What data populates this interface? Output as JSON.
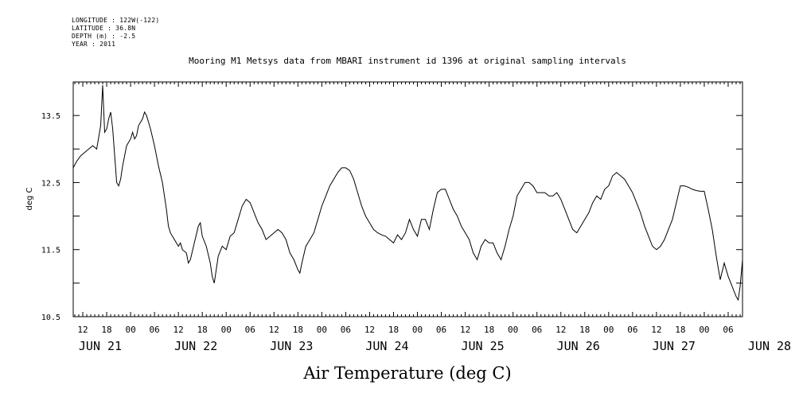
{
  "header": {
    "longitude": "LONGITUDE : 122W(-122)",
    "latitude": "LATITUDE : 36.8N",
    "depth": "DEPTH (m) : -2.5",
    "year": "YEAR : 2011"
  },
  "chart_data": {
    "type": "line",
    "title": "Mooring M1 Metsys data from MBARI instrument id 1396 at original sampling intervals",
    "xlabel": "Air Temperature (deg C)",
    "ylabel": "deg C",
    "ylim": [
      10.5,
      14.0
    ],
    "yticks": [
      "10.5",
      "11.5",
      "12.5",
      "13.5"
    ],
    "x_hour_ticks": [
      "12",
      "18",
      "00",
      "06",
      "12",
      "18",
      "00",
      "06",
      "12",
      "18",
      "00",
      "06",
      "12",
      "18",
      "00",
      "06",
      "12",
      "18",
      "00",
      "06",
      "12",
      "18",
      "00",
      "06",
      "12",
      "18",
      "00",
      "06"
    ],
    "x_day_labels": [
      "JUN 21",
      "JUN 22",
      "JUN 23",
      "JUN 24",
      "JUN 25",
      "JUN 26",
      "JUN 27",
      "JUN 28"
    ],
    "x_units": "hours since 2011-06-21 00:00",
    "xlim": [
      9.6,
      177.6
    ],
    "series": [
      {
        "name": "",
        "points": [
          [
            9.6,
            12.72
          ],
          [
            10.5,
            12.82
          ],
          [
            11.5,
            12.9
          ],
          [
            12.5,
            12.95
          ],
          [
            13.5,
            13.0
          ],
          [
            14.5,
            13.05
          ],
          [
            15.5,
            13.0
          ],
          [
            16.5,
            13.35
          ],
          [
            17.0,
            13.95
          ],
          [
            17.5,
            13.25
          ],
          [
            18.0,
            13.3
          ],
          [
            18.5,
            13.45
          ],
          [
            19.0,
            13.55
          ],
          [
            19.5,
            13.3
          ],
          [
            20.0,
            12.9
          ],
          [
            20.5,
            12.5
          ],
          [
            21.0,
            12.45
          ],
          [
            21.5,
            12.55
          ],
          [
            22.0,
            12.75
          ],
          [
            22.5,
            12.9
          ],
          [
            23.0,
            13.05
          ],
          [
            24.0,
            13.15
          ],
          [
            24.5,
            13.25
          ],
          [
            25.0,
            13.15
          ],
          [
            25.5,
            13.2
          ],
          [
            26.0,
            13.35
          ],
          [
            26.5,
            13.4
          ],
          [
            27.0,
            13.45
          ],
          [
            27.5,
            13.55
          ],
          [
            28.0,
            13.5
          ],
          [
            29.0,
            13.3
          ],
          [
            30.0,
            13.05
          ],
          [
            31.0,
            12.75
          ],
          [
            32.0,
            12.5
          ],
          [
            33.0,
            12.1
          ],
          [
            33.5,
            11.85
          ],
          [
            34.0,
            11.75
          ],
          [
            35.0,
            11.65
          ],
          [
            36.0,
            11.55
          ],
          [
            36.5,
            11.6
          ],
          [
            37.0,
            11.5
          ],
          [
            38.0,
            11.45
          ],
          [
            38.5,
            11.3
          ],
          [
            39.0,
            11.35
          ],
          [
            40.0,
            11.6
          ],
          [
            41.0,
            11.85
          ],
          [
            41.5,
            11.9
          ],
          [
            42.0,
            11.7
          ],
          [
            43.0,
            11.55
          ],
          [
            44.0,
            11.3
          ],
          [
            44.5,
            11.1
          ],
          [
            45.0,
            11.0
          ],
          [
            45.5,
            11.2
          ],
          [
            46.0,
            11.4
          ],
          [
            47.0,
            11.55
          ],
          [
            48.0,
            11.5
          ],
          [
            49.0,
            11.7
          ],
          [
            50.0,
            11.75
          ],
          [
            51.0,
            11.95
          ],
          [
            52.0,
            12.15
          ],
          [
            53.0,
            12.25
          ],
          [
            54.0,
            12.2
          ],
          [
            55.0,
            12.05
          ],
          [
            56.0,
            11.9
          ],
          [
            57.0,
            11.8
          ],
          [
            58.0,
            11.65
          ],
          [
            59.0,
            11.7
          ],
          [
            60.0,
            11.75
          ],
          [
            61.0,
            11.8
          ],
          [
            62.0,
            11.75
          ],
          [
            63.0,
            11.65
          ],
          [
            64.0,
            11.45
          ],
          [
            65.0,
            11.35
          ],
          [
            66.0,
            11.2
          ],
          [
            66.5,
            11.15
          ],
          [
            67.0,
            11.3
          ],
          [
            68.0,
            11.55
          ],
          [
            69.0,
            11.65
          ],
          [
            70.0,
            11.75
          ],
          [
            71.0,
            11.95
          ],
          [
            72.0,
            12.15
          ],
          [
            73.0,
            12.3
          ],
          [
            74.0,
            12.45
          ],
          [
            75.0,
            12.55
          ],
          [
            76.0,
            12.65
          ],
          [
            77.0,
            12.72
          ],
          [
            78.0,
            12.72
          ],
          [
            79.0,
            12.68
          ],
          [
            80.0,
            12.55
          ],
          [
            81.0,
            12.35
          ],
          [
            82.0,
            12.15
          ],
          [
            83.0,
            12.0
          ],
          [
            84.0,
            11.9
          ],
          [
            85.0,
            11.8
          ],
          [
            86.0,
            11.75
          ],
          [
            87.0,
            11.72
          ],
          [
            88.0,
            11.7
          ],
          [
            89.0,
            11.65
          ],
          [
            90.0,
            11.6
          ],
          [
            91.0,
            11.72
          ],
          [
            92.0,
            11.65
          ],
          [
            93.0,
            11.75
          ],
          [
            94.0,
            11.95
          ],
          [
            95.0,
            11.8
          ],
          [
            96.0,
            11.7
          ],
          [
            97.0,
            11.95
          ],
          [
            98.0,
            11.95
          ],
          [
            99.0,
            11.8
          ],
          [
            100.0,
            12.1
          ],
          [
            101.0,
            12.35
          ],
          [
            102.0,
            12.4
          ],
          [
            103.0,
            12.4
          ],
          [
            104.0,
            12.25
          ],
          [
            105.0,
            12.1
          ],
          [
            106.0,
            12.0
          ],
          [
            107.0,
            11.85
          ],
          [
            108.0,
            11.75
          ],
          [
            109.0,
            11.65
          ],
          [
            110.0,
            11.45
          ],
          [
            111.0,
            11.35
          ],
          [
            112.0,
            11.55
          ],
          [
            113.0,
            11.65
          ],
          [
            114.0,
            11.6
          ],
          [
            115.0,
            11.6
          ],
          [
            116.0,
            11.45
          ],
          [
            117.0,
            11.35
          ],
          [
            118.0,
            11.55
          ],
          [
            119.0,
            11.8
          ],
          [
            120.0,
            12.0
          ],
          [
            121.0,
            12.3
          ],
          [
            122.0,
            12.4
          ],
          [
            123.0,
            12.5
          ],
          [
            124.0,
            12.5
          ],
          [
            125.0,
            12.45
          ],
          [
            126.0,
            12.35
          ],
          [
            127.0,
            12.35
          ],
          [
            128.0,
            12.35
          ],
          [
            129.0,
            12.3
          ],
          [
            130.0,
            12.3
          ],
          [
            131.0,
            12.35
          ],
          [
            132.0,
            12.25
          ],
          [
            133.0,
            12.1
          ],
          [
            134.0,
            11.95
          ],
          [
            135.0,
            11.8
          ],
          [
            136.0,
            11.75
          ],
          [
            137.0,
            11.85
          ],
          [
            138.0,
            11.95
          ],
          [
            139.0,
            12.05
          ],
          [
            140.0,
            12.2
          ],
          [
            141.0,
            12.3
          ],
          [
            142.0,
            12.25
          ],
          [
            143.0,
            12.4
          ],
          [
            144.0,
            12.45
          ],
          [
            145.0,
            12.6
          ],
          [
            146.0,
            12.65
          ],
          [
            147.0,
            12.6
          ],
          [
            148.0,
            12.55
          ],
          [
            149.0,
            12.45
          ],
          [
            150.0,
            12.35
          ],
          [
            151.0,
            12.2
          ],
          [
            152.0,
            12.05
          ],
          [
            153.0,
            11.85
          ],
          [
            154.0,
            11.7
          ],
          [
            155.0,
            11.55
          ],
          [
            156.0,
            11.5
          ],
          [
            157.0,
            11.55
          ],
          [
            158.0,
            11.65
          ],
          [
            159.0,
            11.8
          ],
          [
            160.0,
            11.95
          ],
          [
            161.0,
            12.2
          ],
          [
            162.0,
            12.45
          ],
          [
            163.0,
            12.45
          ],
          [
            164.0,
            12.43
          ],
          [
            165.0,
            12.4
          ],
          [
            166.0,
            12.38
          ],
          [
            167.0,
            12.37
          ],
          [
            168.0,
            12.37
          ],
          [
            169.0,
            12.1
          ],
          [
            170.0,
            11.8
          ],
          [
            171.0,
            11.4
          ],
          [
            172.0,
            11.05
          ],
          [
            173.0,
            11.3
          ],
          [
            174.0,
            11.1
          ],
          [
            175.0,
            10.95
          ],
          [
            176.0,
            10.8
          ],
          [
            176.5,
            10.75
          ],
          [
            177.0,
            10.95
          ],
          [
            177.6,
            11.35
          ]
        ]
      }
    ]
  }
}
